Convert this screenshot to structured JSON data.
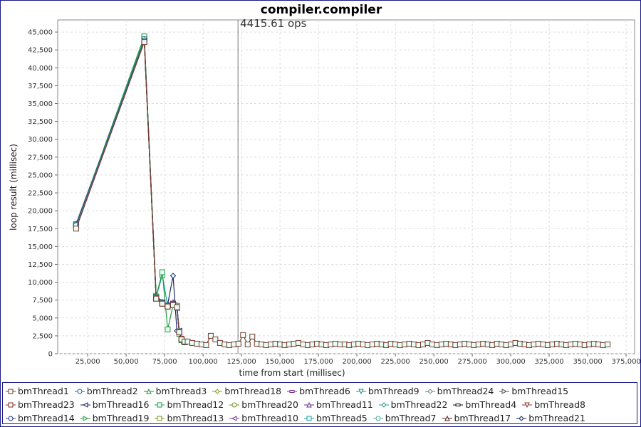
{
  "chart_data": {
    "type": "line",
    "title": "compiler.compiler",
    "xlabel": "time from start (millisec)",
    "ylabel": "loop result (millisec)",
    "xlim": [
      5500,
      380500
    ],
    "ylim": [
      0,
      46700
    ],
    "xticks": [
      "25,000",
      "50,000",
      "75,000",
      "100,000",
      "125,000",
      "150,000",
      "175,000",
      "200,000",
      "225,000",
      "250,000",
      "275,000",
      "300,000",
      "325,000",
      "350,000",
      "375,000"
    ],
    "xtick_values": [
      25000,
      50000,
      75000,
      100000,
      125000,
      150000,
      175000,
      200000,
      225000,
      250000,
      275000,
      300000,
      325000,
      350000,
      375000
    ],
    "yticks": [
      "0",
      "2,500",
      "5,000",
      "7,500",
      "10,000",
      "12,500",
      "15,000",
      "17,500",
      "20,000",
      "22,500",
      "25,000",
      "27,500",
      "30,000",
      "32,500",
      "35,000",
      "37,500",
      "40,000",
      "42,500",
      "45,000"
    ],
    "ytick_values": [
      0,
      2500,
      5000,
      7500,
      10000,
      12500,
      15000,
      17500,
      20000,
      22500,
      25000,
      27500,
      30000,
      32500,
      35000,
      37500,
      40000,
      42500,
      45000
    ],
    "grid": true,
    "legend_placement": "bottom",
    "marker_line": {
      "x": 122700,
      "label": "4415.61 ops"
    },
    "x_early": [
      17500,
      61800,
      69500,
      73500,
      77000,
      80500,
      83000,
      84500,
      86000,
      88000
    ],
    "series": [
      {
        "name": "bmThread1",
        "color": "#7a3b2e",
        "marker": "square",
        "values": [
          17500,
          43600,
          7700,
          7000,
          6600,
          6800,
          6500,
          3000,
          2000,
          1700
        ],
        "tail": {
          "x": [
            90000,
            93000,
            96000,
            99000,
            102000,
            105000,
            108000,
            111000,
            114000,
            117000,
            120000,
            123000,
            126000,
            129000,
            132000,
            135000,
            138000,
            141000,
            144000,
            147000,
            150000,
            153000,
            156000,
            159000,
            162000,
            165000,
            168000,
            171000,
            174000,
            177000,
            180000,
            183000,
            186000,
            189000,
            192000,
            195000,
            198000,
            201000,
            204000,
            207000,
            210000,
            213000,
            216000,
            219000,
            222000,
            225000,
            228000,
            231000,
            234000,
            237000,
            240000,
            243000,
            246000,
            249000,
            252000,
            255000,
            258000,
            261000,
            264000,
            267000,
            270000,
            273000,
            276000,
            279000,
            282000,
            285000,
            288000,
            291000,
            294000,
            297000,
            300000,
            303000,
            306000,
            309000,
            312000,
            315000,
            318000,
            321000,
            324000,
            327000,
            330000,
            333000,
            336000,
            339000,
            342000,
            345000,
            348000,
            351000,
            354000,
            357000,
            360000,
            363000
          ],
          "y": [
            1700,
            1500,
            1400,
            1300,
            1200,
            2500,
            2000,
            1500,
            1300,
            1200,
            1300,
            1400,
            2600,
            1300,
            2400,
            1400,
            1300,
            1200,
            1300,
            1400,
            1300,
            1200,
            1300,
            1400,
            1500,
            1300,
            1200,
            1300,
            1400,
            1300,
            1200,
            1300,
            1400,
            1300,
            1300,
            1200,
            1300,
            1400,
            1300,
            1200,
            1300,
            1400,
            1300,
            1200,
            1400,
            1300,
            1200,
            1300,
            1400,
            1300,
            1200,
            1300,
            1500,
            1300,
            1200,
            1300,
            1400,
            1300,
            1200,
            1300,
            1400,
            1300,
            1200,
            1300,
            1400,
            1300,
            1200,
            1400,
            1300,
            1200,
            1300,
            1500,
            1400,
            1300,
            1200,
            1300,
            1400,
            1300,
            1200,
            1300,
            1400,
            1300,
            1200,
            1300,
            1400,
            1300,
            1200,
            1300,
            1400,
            1300,
            1200,
            1300
          ]
        }
      },
      {
        "name": "bmThread2",
        "color": "#2b5fa8",
        "marker": "circle",
        "values": [
          18000,
          43800,
          7800,
          7100,
          6700,
          6900,
          6400,
          3100,
          2000,
          1600
        ]
      },
      {
        "name": "bmThread3",
        "color": "#2e8b3a",
        "marker": "triangle",
        "values": [
          18100,
          43900,
          8200,
          7200,
          6800,
          7000,
          6600,
          3000,
          1900,
          1600
        ]
      },
      {
        "name": "bmThread18",
        "color": "#8c9a2a",
        "marker": "diamond",
        "values": [
          18000,
          43700,
          7900,
          7000,
          6700,
          6900,
          6500,
          3200,
          2100,
          1700
        ]
      },
      {
        "name": "bmThread6",
        "color": "#7a2a8c",
        "marker": "hbar",
        "values": [
          17900,
          43800,
          7800,
          7100,
          6600,
          7100,
          6700,
          3000,
          2000,
          1600
        ]
      },
      {
        "name": "bmThread9",
        "color": "#2a8c8c",
        "marker": "triangle-down",
        "values": [
          18000,
          44000,
          7900,
          7000,
          6700,
          6800,
          6400,
          3100,
          2000,
          1700
        ]
      },
      {
        "name": "bmThread24",
        "color": "#777777",
        "marker": "circle-small",
        "values": [
          17900,
          43700,
          7800,
          7000,
          6800,
          6900,
          6500,
          3000,
          1900,
          1600
        ]
      },
      {
        "name": "bmThread15",
        "color": "#555555",
        "marker": "triangle-right",
        "values": [
          18000,
          43900,
          7700,
          7100,
          6700,
          6800,
          6600,
          3100,
          2000,
          1700
        ]
      },
      {
        "name": "bmThread23",
        "color": "#8c2a2a",
        "marker": "cross",
        "values": [
          18100,
          43800,
          7800,
          7000,
          6600,
          6900,
          6500,
          3000,
          2100,
          1600
        ]
      },
      {
        "name": "bmThread16",
        "color": "#1a1a6c",
        "marker": "triangle-left",
        "values": [
          18000,
          43700,
          7900,
          7200,
          6800,
          7000,
          6400,
          3200,
          2000,
          1700
        ]
      },
      {
        "name": "bmThread12",
        "color": "#1e9a3a",
        "marker": "square",
        "values": [
          18000,
          44400,
          8000,
          11400,
          3400,
          6800,
          6700,
          2800,
          1900,
          1600
        ]
      },
      {
        "name": "bmThread20",
        "color": "#7a8c1a",
        "marker": "circle",
        "values": [
          17900,
          43800,
          7800,
          7000,
          6700,
          6900,
          6500,
          3000,
          2000,
          1600
        ]
      },
      {
        "name": "bmThread11",
        "color": "#6a2a8c",
        "marker": "triangle",
        "values": [
          18000,
          43900,
          7900,
          7100,
          6600,
          7200,
          6800,
          3100,
          2000,
          1700
        ]
      },
      {
        "name": "bmThread22",
        "color": "#2a9a9a",
        "marker": "diamond",
        "values": [
          18100,
          43800,
          7800,
          7000,
          6700,
          6800,
          6500,
          3200,
          2100,
          1600
        ]
      },
      {
        "name": "bmThread4",
        "color": "#111111",
        "marker": "hbar",
        "values": [
          18000,
          43700,
          7700,
          7100,
          6800,
          6900,
          6400,
          3000,
          1900,
          1700
        ]
      },
      {
        "name": "bmThread8",
        "color": "#8c3a2a",
        "marker": "triangle-down",
        "values": [
          17900,
          43800,
          7800,
          7000,
          6700,
          7000,
          6600,
          3100,
          2000,
          1600
        ]
      },
      {
        "name": "bmThread14",
        "color": "#2a3a8c",
        "marker": "circle",
        "values": [
          18000,
          43900,
          7900,
          7200,
          6600,
          6800,
          6500,
          3000,
          2000,
          1700
        ]
      },
      {
        "name": "bmThread19",
        "color": "#2a9a3a",
        "marker": "triangle-right",
        "values": [
          18100,
          44100,
          8100,
          7300,
          6800,
          6900,
          6600,
          3100,
          2100,
          1600
        ]
      },
      {
        "name": "bmThread13",
        "color": "#8c8c1a",
        "marker": "cross",
        "values": [
          18000,
          43800,
          7800,
          7000,
          6700,
          6900,
          6500,
          3000,
          2000,
          1600
        ]
      },
      {
        "name": "bmThread10",
        "color": "#7a3a9a",
        "marker": "triangle-left",
        "values": [
          17900,
          43700,
          7800,
          7100,
          6800,
          7000,
          6400,
          3200,
          1900,
          1700
        ]
      },
      {
        "name": "bmThread5",
        "color": "#1aa0a0",
        "marker": "square",
        "values": [
          18000,
          44200,
          7900,
          11000,
          6700,
          6800,
          6500,
          3000,
          2000,
          1600
        ]
      },
      {
        "name": "bmThread7",
        "color": "#5aaa9a",
        "marker": "circle",
        "values": [
          18000,
          43800,
          7800,
          7000,
          6600,
          6900,
          6600,
          3100,
          2000,
          1700
        ]
      },
      {
        "name": "bmThread17",
        "color": "#5a1a1a",
        "marker": "triangle",
        "values": [
          18100,
          43900,
          7700,
          7100,
          6700,
          6800,
          6500,
          3000,
          2100,
          1600
        ]
      },
      {
        "name": "bmThread21",
        "color": "#1a2a6c",
        "marker": "diamond",
        "values": [
          18200,
          43800,
          7800,
          7200,
          6900,
          10900,
          3200,
          2900,
          1800,
          1600
        ]
      }
    ]
  }
}
